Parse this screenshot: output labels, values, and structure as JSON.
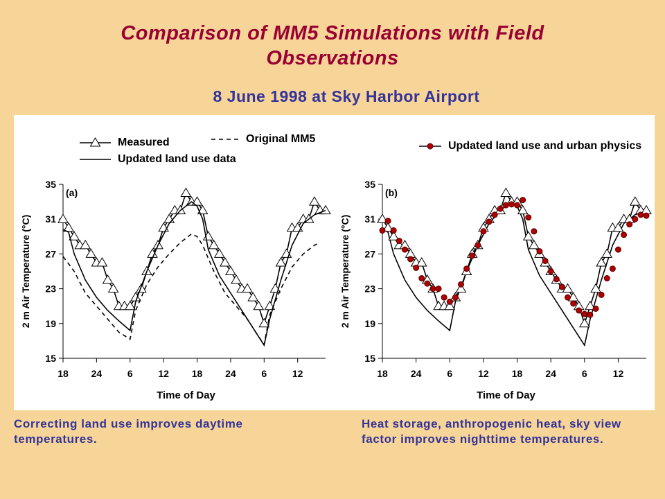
{
  "header": {
    "title": "Comparison of MM5 Simulations with Field Observations",
    "subtitle": "8 June 1998 at Sky Harbor Airport"
  },
  "captions": [
    "Correcting land use improves daytime temperatures.",
    "Heat storage, anthropogenic heat, sky view factor improves nighttime temperatures."
  ],
  "chart_data": [
    {
      "type": "line",
      "panel_label": "(a)",
      "x_label": "Time of Day",
      "y_label": "2 m Air Temperature (°C)",
      "xlim": [
        0,
        47
      ],
      "xticks": [
        {
          "value": 0,
          "label": "18"
        },
        {
          "value": 6,
          "label": "24"
        },
        {
          "value": 12,
          "label": "6"
        },
        {
          "value": 18,
          "label": "12"
        },
        {
          "value": 24,
          "label": "18"
        },
        {
          "value": 30,
          "label": "24"
        },
        {
          "value": 36,
          "label": "6"
        },
        {
          "value": 42,
          "label": "12"
        }
      ],
      "ylim": [
        15,
        35
      ],
      "yticks": [
        15,
        19,
        23,
        27,
        31,
        35
      ],
      "series": [
        {
          "name": "Measured",
          "color": "#000000",
          "marker": "triangle",
          "dash": "solid",
          "x": [
            0,
            1,
            2,
            3,
            4,
            5,
            6,
            7,
            8,
            9,
            10,
            11,
            12,
            13,
            14,
            15,
            16,
            17,
            18,
            19,
            20,
            21,
            22,
            23,
            24,
            25,
            26,
            27,
            28,
            29,
            30,
            31,
            32,
            33,
            34,
            35,
            36,
            37,
            38,
            39,
            40,
            41,
            42,
            43,
            44,
            45,
            46,
            47
          ],
          "values": [
            31,
            30,
            29,
            28,
            28,
            27,
            26,
            26,
            24,
            23,
            21,
            21,
            21,
            22,
            23,
            25,
            27,
            28,
            30,
            31,
            32,
            32,
            34,
            33,
            33,
            32,
            29,
            28,
            27,
            26,
            25,
            24,
            23,
            23,
            22,
            21,
            19,
            21,
            23,
            26,
            27,
            30,
            30,
            31,
            31,
            33,
            32,
            32
          ]
        },
        {
          "name": "Original MM5",
          "color": "#000000",
          "marker": "none",
          "dash": "dashed",
          "x": [
            0,
            2,
            4,
            6,
            8,
            10,
            12,
            13,
            15,
            17,
            19,
            21,
            23,
            24,
            25,
            27,
            29,
            31,
            33,
            35,
            36,
            37,
            39,
            41,
            43,
            45,
            46
          ],
          "values": [
            26.7,
            25,
            22.5,
            21,
            19.5,
            18,
            17.2,
            20.5,
            23.5,
            25.5,
            27,
            28.3,
            29.3,
            29,
            28,
            25,
            22.5,
            21,
            19.5,
            17.5,
            16.6,
            20,
            23,
            25.5,
            27,
            28,
            28.3
          ]
        },
        {
          "name": "Updated land use data",
          "color": "#000000",
          "marker": "none",
          "dash": "solid",
          "x": [
            0,
            1,
            2,
            4,
            6,
            8,
            10,
            12,
            13,
            15,
            17,
            19,
            21,
            23,
            24,
            25,
            26,
            28,
            30,
            32,
            34,
            36,
            37,
            39,
            41,
            43,
            45,
            47
          ],
          "values": [
            29.8,
            29.5,
            27,
            24,
            22,
            20.5,
            19.3,
            18.2,
            21.5,
            25,
            28,
            30.5,
            32,
            33,
            32.5,
            31,
            27.5,
            24.5,
            22.5,
            20.5,
            18.5,
            16.5,
            19.5,
            24,
            28,
            30.5,
            31.5,
            32
          ]
        }
      ]
    },
    {
      "type": "line",
      "panel_label": "(b)",
      "x_label": "Time of Day",
      "y_label": "2 m Air Temperature (°C)",
      "xlim": [
        0,
        47
      ],
      "xticks": [
        {
          "value": 0,
          "label": "18"
        },
        {
          "value": 6,
          "label": "24"
        },
        {
          "value": 12,
          "label": "6"
        },
        {
          "value": 18,
          "label": "12"
        },
        {
          "value": 24,
          "label": "18"
        },
        {
          "value": 30,
          "label": "24"
        },
        {
          "value": 36,
          "label": "6"
        },
        {
          "value": 42,
          "label": "12"
        }
      ],
      "ylim": [
        15,
        35
      ],
      "yticks": [
        15,
        19,
        23,
        27,
        31,
        35
      ],
      "series": [
        {
          "color": "#000000",
          "marker": "none",
          "dash": "solid",
          "x": [
            0,
            1,
            2,
            4,
            6,
            8,
            10,
            12,
            13,
            15,
            17,
            19,
            21,
            23,
            24,
            25,
            26,
            28,
            30,
            32,
            34,
            36,
            37,
            39,
            41,
            43,
            45,
            47
          ],
          "values": [
            29.8,
            29.5,
            27,
            24,
            22,
            20.5,
            19.3,
            18.2,
            21.5,
            25,
            28,
            30.5,
            32,
            33,
            32.5,
            31,
            27.5,
            24.5,
            22.5,
            20.5,
            18.5,
            16.5,
            19.5,
            24,
            28,
            30.5,
            31.5,
            32
          ]
        },
        {
          "color": "#000000",
          "marker": "triangle",
          "dash": "solid",
          "x": [
            0,
            1,
            2,
            3,
            4,
            5,
            6,
            7,
            8,
            9,
            10,
            11,
            12,
            13,
            14,
            15,
            16,
            17,
            18,
            19,
            20,
            21,
            22,
            23,
            24,
            25,
            26,
            27,
            28,
            29,
            30,
            31,
            32,
            33,
            34,
            35,
            36,
            37,
            38,
            39,
            40,
            41,
            42,
            43,
            44,
            45,
            46,
            47
          ],
          "values": [
            31,
            30,
            29,
            28,
            28,
            27,
            26,
            26,
            24,
            23,
            21,
            21,
            21,
            22,
            23,
            25,
            27,
            28,
            30,
            31,
            32,
            32,
            34,
            33,
            33,
            32,
            29,
            28,
            27,
            26,
            25,
            24,
            23,
            23,
            22,
            21,
            19,
            21,
            23,
            26,
            27,
            30,
            30,
            31,
            31,
            33,
            32,
            32
          ]
        },
        {
          "name": "Updated land use and urban physics",
          "color": "#b00000",
          "marker": "dot",
          "dash": "solid",
          "x": [
            0,
            1,
            2,
            3,
            4,
            5,
            6,
            7,
            8,
            9,
            10,
            11,
            12,
            13,
            14,
            15,
            16,
            17,
            18,
            19,
            20,
            21,
            22,
            23,
            24,
            25,
            26,
            27,
            28,
            29,
            30,
            31,
            32,
            33,
            34,
            35,
            36,
            37,
            38,
            39,
            40,
            41,
            42,
            43,
            44,
            45,
            46,
            47
          ],
          "values": [
            29.7,
            30.8,
            29.7,
            28.5,
            27.5,
            26.4,
            25.4,
            24.2,
            23.6,
            23.0,
            23.0,
            22.0,
            21.5,
            22.0,
            23.5,
            25.3,
            26.8,
            28.0,
            29.6,
            30.7,
            31.5,
            32.2,
            32.6,
            32.7,
            32.6,
            33.2,
            31.2,
            29.6,
            27.3,
            26.2,
            25.0,
            24.1,
            23.2,
            22.0,
            21.3,
            20.5,
            20.1,
            20.0,
            20.7,
            22.3,
            24.2,
            25.3,
            27.5,
            29.2,
            30.4,
            31.0,
            31.5,
            31.4
          ]
        }
      ]
    }
  ]
}
